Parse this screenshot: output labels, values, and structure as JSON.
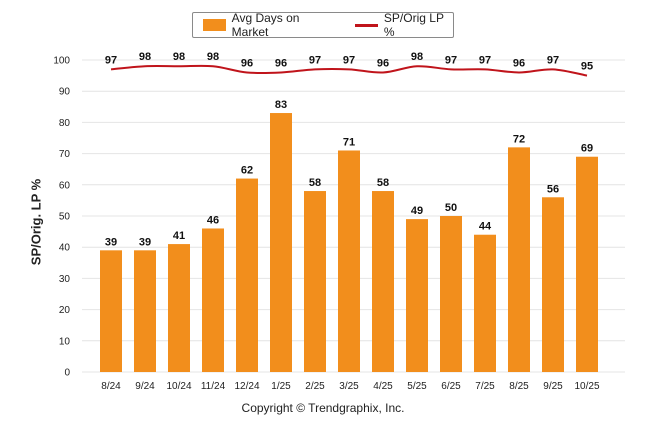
{
  "chart_data": {
    "type": "bar",
    "categories": [
      "8/24",
      "9/24",
      "10/24",
      "11/24",
      "12/24",
      "1/25",
      "2/25",
      "3/25",
      "4/25",
      "5/25",
      "6/25",
      "7/25",
      "8/25",
      "9/25",
      "10/25"
    ],
    "series": [
      {
        "name": "Avg Days on Market",
        "type": "bar",
        "color": "#f28e1c",
        "values": [
          39,
          39,
          41,
          46,
          62,
          83,
          58,
          71,
          58,
          49,
          50,
          44,
          72,
          56,
          69
        ]
      },
      {
        "name": "SP/Orig LP %",
        "type": "line",
        "color": "#c0141b",
        "values": [
          97,
          98,
          98,
          98,
          96,
          96,
          97,
          97,
          96,
          98,
          97,
          97,
          96,
          97,
          95
        ]
      }
    ],
    "ylabel": "SP/Orig. LP %",
    "ylim": [
      0,
      100
    ],
    "yticks": [
      0,
      10,
      20,
      30,
      40,
      50,
      60,
      70,
      80,
      90,
      100
    ],
    "grid": true,
    "legend_position": "top-center"
  },
  "footer": {
    "copyright": "Copyright © Trendgraphix, Inc."
  }
}
